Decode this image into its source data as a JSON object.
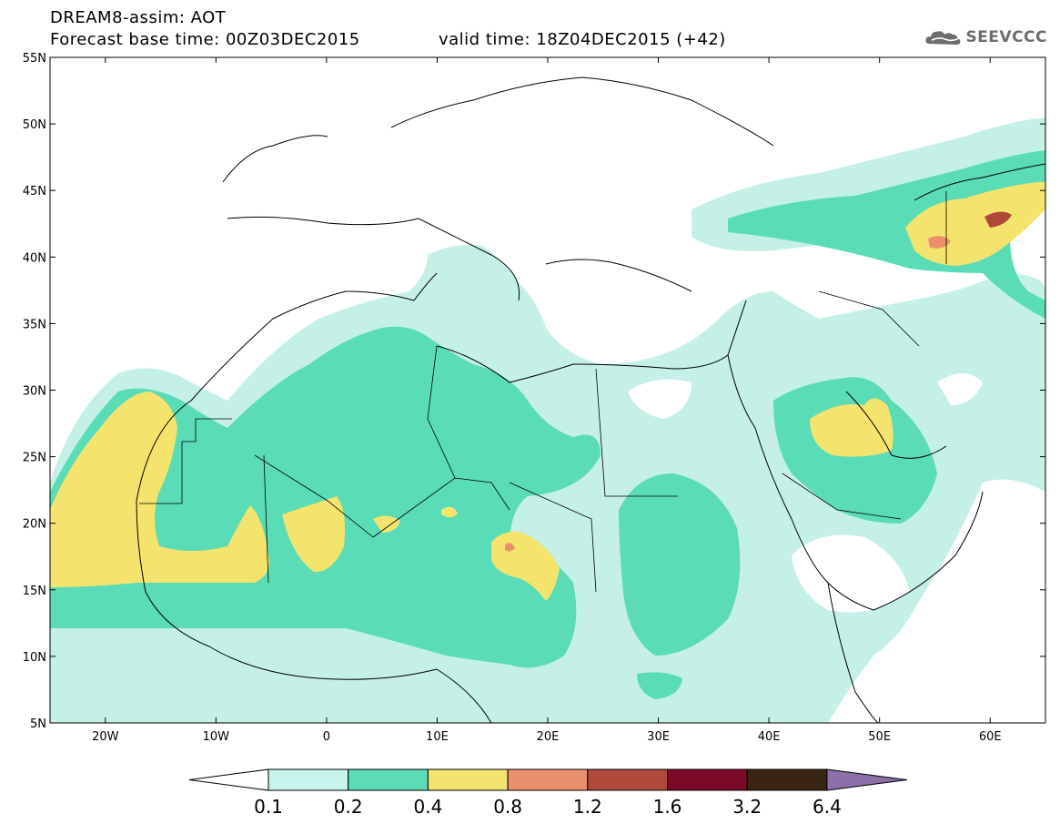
{
  "header": {
    "title_line1": "DREAM8-assim: AOT",
    "title_line2": "Forecast base time: 00Z03DEC2015",
    "valid_time": "valid time: 18Z04DEC2015 (+42)",
    "logo_text": "SEEVCCC"
  },
  "map": {
    "variable": "AOT",
    "model": "DREAM8-assim",
    "lon_range": [
      -25,
      65
    ],
    "lat_range": [
      5,
      55
    ],
    "lon_ticks": [
      {
        "value": -20,
        "label": "20W"
      },
      {
        "value": -10,
        "label": "10W"
      },
      {
        "value": 0,
        "label": "0"
      },
      {
        "value": 10,
        "label": "10E"
      },
      {
        "value": 20,
        "label": "20E"
      },
      {
        "value": 30,
        "label": "30E"
      },
      {
        "value": 40,
        "label": "40E"
      },
      {
        "value": 50,
        "label": "50E"
      },
      {
        "value": 60,
        "label": "60E"
      }
    ],
    "lat_ticks": [
      {
        "value": 55,
        "label": "55N"
      },
      {
        "value": 50,
        "label": "50N"
      },
      {
        "value": 45,
        "label": "45N"
      },
      {
        "value": 40,
        "label": "40N"
      },
      {
        "value": 35,
        "label": "35N"
      },
      {
        "value": 30,
        "label": "30N"
      },
      {
        "value": 25,
        "label": "25N"
      },
      {
        "value": 20,
        "label": "20N"
      },
      {
        "value": 15,
        "label": "15N"
      },
      {
        "value": 10,
        "label": "10N"
      },
      {
        "value": 5,
        "label": "5N"
      }
    ],
    "level_colors": {
      "0.1-0.2": "#c4f0e8",
      "0.2-0.4": "#5adcb6",
      "0.4-0.8": "#f4e46e",
      "0.8-1.2": "#e9906a",
      "1.2-1.6": "#b0473b"
    }
  },
  "colorbar": {
    "labels": [
      "0.1",
      "0.2",
      "0.4",
      "0.8",
      "1.2",
      "1.6",
      "3.2",
      "6.4"
    ],
    "colors": [
      "#c8f4ee",
      "#5cdcb4",
      "#f2e46e",
      "#e8916c",
      "#b04a3c",
      "#7a0a28",
      "#3a2414",
      "#8d6ea8"
    ]
  }
}
